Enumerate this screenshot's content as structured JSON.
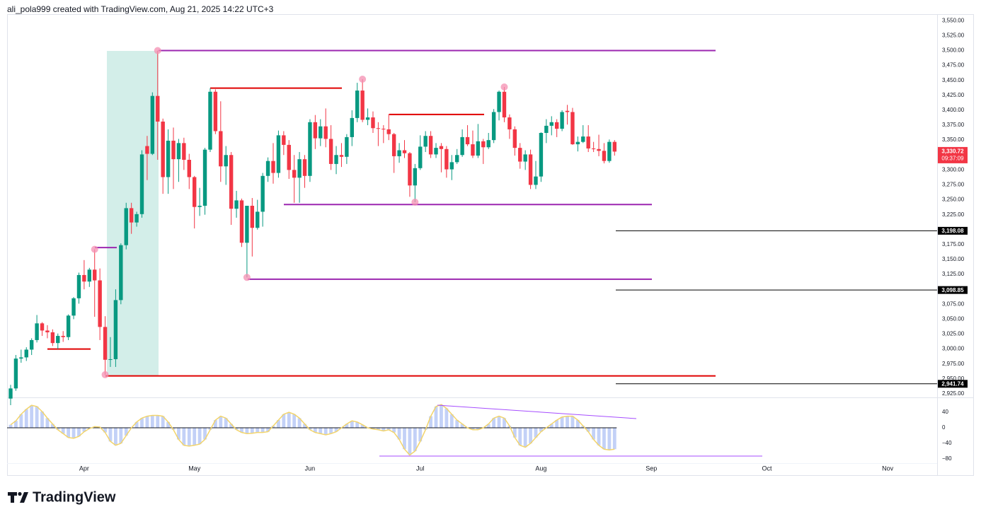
{
  "header": "ali_pola999 created with TradingView.com, Aug 21, 2025 14:22 UTC+3",
  "brand": "TradingView",
  "chart_data": [
    {
      "type": "candlestick",
      "categories": [
        null,
        null,
        null,
        null,
        null,
        null,
        null,
        null,
        null,
        null,
        null,
        null,
        null,
        null,
        "Apr",
        null,
        null,
        null,
        null,
        null,
        null,
        null,
        null,
        null,
        null,
        null,
        null,
        null,
        null,
        null,
        null,
        null,
        null,
        null,
        null,
        "May",
        null,
        null,
        null,
        null,
        null,
        null,
        null,
        null,
        null,
        null,
        null,
        null,
        null,
        null,
        null,
        null,
        null,
        null,
        null,
        null,
        null,
        "Jun",
        null,
        null,
        null,
        null,
        null,
        null,
        null,
        null,
        null,
        null,
        null,
        null,
        null,
        null,
        null,
        null,
        null,
        null,
        null,
        null,
        "Jul",
        null,
        null,
        null,
        null,
        null,
        null,
        null,
        null,
        null,
        null,
        null,
        null,
        null,
        null,
        null,
        null,
        null,
        null,
        null,
        null,
        null,
        null,
        "Aug",
        null,
        null,
        null,
        null,
        null,
        null,
        null,
        null,
        null,
        null,
        null,
        null,
        null,
        null,
        null,
        null,
        null,
        null,
        null,
        null,
        "Sep",
        null,
        null,
        null,
        null,
        null,
        null,
        null,
        null,
        null,
        null,
        null,
        null,
        null,
        null,
        null,
        null,
        null,
        null,
        null,
        null,
        null,
        "Oct",
        null,
        null,
        null,
        null,
        null,
        null,
        null,
        null,
        null,
        null,
        null,
        null,
        null,
        null,
        null,
        null,
        null,
        null,
        null,
        null,
        null,
        null,
        "Nov",
        null,
        null,
        null,
        null,
        null,
        null,
        null,
        null
      ],
      "open": [
        2917,
        2934,
        2984,
        2986,
        2999,
        3015,
        3043,
        3031,
        3028,
        3010,
        3022,
        3020,
        3056,
        3085,
        3124,
        3113,
        3133,
        3115,
        3037,
        2982,
        2983,
        3082,
        3174,
        3236,
        3212,
        3226,
        3340,
        3327,
        3424,
        3381,
        3288,
        3349,
        3318,
        3345,
        3317,
        3288,
        3238,
        3240,
        3334,
        3431,
        3365,
        3306,
        3325,
        3235,
        3249,
        3178,
        3240,
        3203,
        3230,
        3290,
        3315,
        3295,
        3358,
        3342,
        3300,
        3287,
        3318,
        3290,
        3380,
        3353,
        3373,
        3352,
        3310,
        3325,
        3322,
        3355,
        3387,
        3433,
        3384,
        3388,
        3370,
        3369,
        3368,
        3360,
        3323,
        3333,
        3328,
        3274,
        3303,
        3339,
        3357,
        3326,
        3340,
        3335,
        3301,
        3313,
        3325,
        3355,
        3343,
        3324,
        3348,
        3338,
        3350,
        3397,
        3431,
        3388,
        3368,
        3337,
        3314,
        3326,
        3275,
        3289,
        3362,
        3374,
        3380,
        3369,
        3399,
        3397,
        3343,
        3347,
        3356,
        3336,
        3335,
        3332,
        3315,
        3347,
        null,
        null,
        null,
        null,
        null,
        null,
        null,
        null,
        null,
        null,
        null,
        null,
        null,
        null,
        null,
        null,
        null,
        null,
        null,
        null,
        null,
        null,
        null,
        null,
        null,
        null,
        null,
        null,
        null,
        null,
        null,
        null,
        null,
        null,
        null,
        null,
        null,
        null,
        null,
        null,
        null,
        null,
        null,
        null,
        null,
        null,
        null,
        null,
        null,
        null,
        null,
        null,
        null,
        null,
        null,
        null,
        null,
        null,
        null,
        null
      ],
      "high": [
        2940,
        2990,
        2999,
        3003,
        3018,
        3057,
        3045,
        3040,
        3033,
        3026,
        3030,
        3058,
        3087,
        3128,
        3149,
        3136,
        3167,
        3135,
        3055,
        3020,
        3100,
        3177,
        3245,
        3245,
        3230,
        3333,
        3357,
        3430,
        3500,
        3386,
        3368,
        3371,
        3352,
        3354,
        3327,
        3290,
        3270,
        3337,
        3437,
        3435,
        3415,
        3340,
        3330,
        3265,
        3252,
        3240,
        3253,
        3250,
        3295,
        3321,
        3345,
        3366,
        3365,
        3350,
        3325,
        3330,
        3325,
        3385,
        3392,
        3385,
        3403,
        3375,
        3340,
        3345,
        3360,
        3400,
        3446,
        3452,
        3403,
        3398,
        3380,
        3375,
        3394,
        3362,
        3345,
        3350,
        3330,
        3310,
        3358,
        3365,
        3365,
        3345,
        3345,
        3340,
        3325,
        3335,
        3368,
        3375,
        3366,
        3377,
        3352,
        3362,
        3402,
        3433,
        3439,
        3393,
        3373,
        3345,
        3333,
        3334,
        3315,
        3363,
        3385,
        3390,
        3385,
        3400,
        3409,
        3404,
        3356,
        3375,
        3375,
        3347,
        3359,
        3345,
        3351,
        3350,
        null,
        null,
        null,
        null,
        null,
        null,
        null,
        null,
        null,
        null,
        null,
        null,
        null,
        null,
        null,
        null,
        null,
        null,
        null,
        null,
        null,
        null,
        null,
        null,
        null,
        null,
        null,
        null,
        null,
        null,
        null,
        null,
        null,
        null,
        null,
        null,
        null,
        null,
        null,
        null,
        null,
        null,
        null,
        null,
        null,
        null,
        null,
        null,
        null,
        null,
        null,
        null,
        null,
        null,
        null,
        null,
        null,
        null,
        null,
        null
      ],
      "low": [
        2906,
        2930,
        2977,
        2980,
        2990,
        3011,
        3022,
        3018,
        3005,
        3000,
        3012,
        3015,
        3050,
        3076,
        3100,
        3104,
        3054,
        3015,
        2957,
        2970,
        2970,
        3075,
        3167,
        3193,
        3205,
        3220,
        3283,
        3325,
        3317,
        3260,
        3260,
        3268,
        3280,
        3300,
        3268,
        3202,
        3223,
        3225,
        3330,
        3360,
        3280,
        3275,
        3208,
        3220,
        3171,
        3120,
        3155,
        3200,
        3205,
        3280,
        3277,
        3287,
        3325,
        3285,
        3245,
        3245,
        3270,
        3280,
        3335,
        3340,
        3338,
        3300,
        3293,
        3305,
        3310,
        3340,
        3380,
        3380,
        3375,
        3362,
        3340,
        3345,
        3350,
        3295,
        3312,
        3320,
        3255,
        3246,
        3300,
        3330,
        3320,
        3320,
        3296,
        3287,
        3283,
        3310,
        3322,
        3340,
        3320,
        3320,
        3310,
        3335,
        3345,
        3383,
        3380,
        3352,
        3324,
        3302,
        3300,
        3268,
        3268,
        3280,
        3345,
        3358,
        3355,
        3365,
        3376,
        3342,
        3331,
        3345,
        3330,
        3330,
        3323,
        3311,
        3312,
        3324,
        null,
        null,
        null,
        null,
        null,
        null,
        null,
        null,
        null,
        null,
        null,
        null,
        null,
        null,
        null,
        null,
        null,
        null,
        null,
        null,
        null,
        null,
        null,
        null,
        null,
        null,
        null,
        null,
        null,
        null,
        null,
        null,
        null,
        null,
        null,
        null,
        null,
        null,
        null,
        null,
        null,
        null,
        null,
        null,
        null,
        null,
        null,
        null,
        null,
        null,
        null,
        null,
        null,
        null,
        null,
        null,
        null,
        null,
        null,
        null
      ],
      "close": [
        2934,
        2984,
        2986,
        2999,
        3015,
        3043,
        3031,
        3028,
        3010,
        3022,
        3020,
        3056,
        3085,
        3124,
        3113,
        3133,
        3115,
        3037,
        2982,
        2983,
        3082,
        3174,
        3236,
        3212,
        3226,
        3326,
        3327,
        3424,
        3381,
        3288,
        3349,
        3318,
        3345,
        3317,
        3288,
        3238,
        3240,
        3334,
        3431,
        3365,
        3306,
        3325,
        3235,
        3249,
        3178,
        3240,
        3203,
        3230,
        3290,
        3315,
        3295,
        3358,
        3342,
        3300,
        3287,
        3318,
        3290,
        3380,
        3353,
        3373,
        3352,
        3310,
        3325,
        3322,
        3355,
        3387,
        3433,
        3384,
        3388,
        3370,
        3369,
        3368,
        3360,
        3323,
        3333,
        3328,
        3274,
        3303,
        3339,
        3357,
        3326,
        3337,
        3335,
        3301,
        3313,
        3325,
        3355,
        3343,
        3324,
        3348,
        3338,
        3350,
        3397,
        3431,
        3388,
        3368,
        3337,
        3314,
        3326,
        3275,
        3289,
        3362,
        3374,
        3380,
        3369,
        3397,
        3397,
        3343,
        3347,
        3356,
        3336,
        3335,
        3332,
        3315,
        3347,
        3330.72,
        null,
        null,
        null,
        null,
        null,
        null,
        null,
        null,
        null,
        null,
        null,
        null,
        null,
        null,
        null,
        null,
        null,
        null,
        null,
        null,
        null,
        null,
        null,
        null,
        null,
        null,
        null,
        null,
        null,
        null,
        null,
        null,
        null,
        null,
        null,
        null,
        null,
        null,
        null,
        null,
        null,
        null,
        null,
        null,
        null,
        null,
        null,
        null,
        null,
        null,
        null,
        null,
        null,
        null,
        null,
        null,
        null,
        null,
        null,
        null
      ],
      "up_color": "#089981",
      "down_color": "#f23645",
      "ylim": [
        2919,
        3561
      ],
      "yticks": [
        {
          "value": 2925,
          "label": "2,925.00"
        },
        {
          "value": 2950,
          "label": "2,950.00"
        },
        {
          "value": 2975,
          "label": "2,975.00"
        },
        {
          "value": 3000,
          "label": "3,000.00"
        },
        {
          "value": 3025,
          "label": "3,025.00"
        },
        {
          "value": 3050,
          "label": "3,050.00"
        },
        {
          "value": 3075,
          "label": "3,075.00"
        },
        {
          "value": 3100,
          "label": "3,100.00"
        },
        {
          "value": 3125,
          "label": "3,125.00"
        },
        {
          "value": 3150,
          "label": "3,150.00"
        },
        {
          "value": 3175,
          "label": "3,175.00"
        },
        {
          "value": 3200,
          "label": "3,200.00"
        },
        {
          "value": 3225,
          "label": "3,225.00"
        },
        {
          "value": 3250,
          "label": "3,250.00"
        },
        {
          "value": 3275,
          "label": "3,275.00"
        },
        {
          "value": 3300,
          "label": "3,300.00"
        },
        {
          "value": 3325,
          "label": "3,325.00"
        },
        {
          "value": 3350,
          "label": "3,350.00"
        },
        {
          "value": 3375,
          "label": "3,375.00"
        },
        {
          "value": 3400,
          "label": "3,400.00"
        },
        {
          "value": 3425,
          "label": "3,425.00"
        },
        {
          "value": 3450,
          "label": "3,450.00"
        },
        {
          "value": 3475,
          "label": "3,475.00"
        },
        {
          "value": 3500,
          "label": "3,500.00"
        },
        {
          "value": 3525,
          "label": "3,525.00"
        },
        {
          "value": 3550,
          "label": "3,550.00"
        }
      ],
      "grid": false,
      "levels": [
        {
          "value": 3500,
          "color": "#9c27b0"
        },
        {
          "value": 3437,
          "color": "#e00000"
        },
        {
          "value": 3393,
          "color": "#e00000"
        },
        {
          "value": 3242,
          "color": "#9c27b0"
        },
        {
          "value": 3117,
          "color": "#9c27b0"
        },
        {
          "value": 2955,
          "color": "#e00000"
        },
        {
          "value": 3170,
          "color": "#9c27b0"
        },
        {
          "value": 3000,
          "color": "#e00000"
        }
      ],
      "price_lines": {
        "values": [
          3198.08,
          3098.85,
          2941.74
        ],
        "value_labels": [
          "3,198.08",
          "3,098.85",
          "2,941.74"
        ]
      },
      "last_price_label": "3,330.72",
      "countdown": "09:37:09"
    },
    {
      "type": "bar",
      "values": [
        8,
        18,
        35,
        48,
        58,
        55,
        42,
        25,
        10,
        -5,
        -15,
        -25,
        -27,
        -22,
        -10,
        -2,
        3,
        2,
        -12,
        -35,
        -45,
        -40,
        -20,
        0,
        15,
        25,
        30,
        32,
        32,
        30,
        15,
        -5,
        -30,
        -45,
        -47,
        -45,
        -42,
        -30,
        -5,
        20,
        30,
        25,
        10,
        -5,
        -12,
        -15,
        -14,
        -12,
        -12,
        -10,
        5,
        20,
        35,
        40,
        35,
        25,
        10,
        -5,
        -12,
        -15,
        -18,
        -15,
        -10,
        0,
        10,
        18,
        15,
        8,
        0,
        -3,
        -5,
        -8,
        -5,
        -12,
        -30,
        -55,
        -70,
        -60,
        -35,
        -5,
        30,
        55,
        60,
        50,
        35,
        20,
        10,
        0,
        -5,
        -5,
        0,
        10,
        25,
        30,
        25,
        5,
        -25,
        -45,
        -50,
        -40,
        -25,
        -10,
        0,
        10,
        20,
        28,
        30,
        30,
        20,
        5,
        -10,
        -30,
        -45,
        -55,
        -57,
        -55,
        null,
        null,
        null,
        null,
        null,
        null,
        null,
        null,
        null,
        null,
        null,
        null,
        null,
        null,
        null,
        null,
        null,
        null,
        null,
        null,
        null,
        null,
        null,
        null,
        null,
        null,
        null,
        null,
        null,
        null,
        null,
        null,
        null,
        null,
        null,
        null,
        null,
        null,
        null,
        null,
        null,
        null,
        null,
        null,
        null,
        null,
        null,
        null,
        null,
        null,
        null,
        null,
        null,
        null,
        null,
        null,
        null,
        null,
        null,
        null
      ],
      "color": "#c3d1f7",
      "line_color": "#f2d46b",
      "ylim": [
        -91,
        73
      ],
      "yticks": [
        40,
        0,
        {
          "value": -40,
          "label": "−40"
        },
        {
          "value": -80,
          "label": "−80"
        }
      ]
    }
  ]
}
